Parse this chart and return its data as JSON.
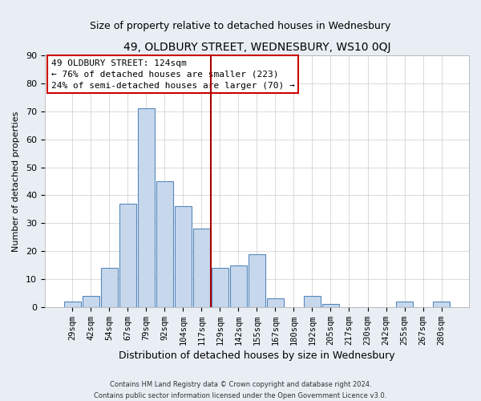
{
  "title": "49, OLDBURY STREET, WEDNESBURY, WS10 0QJ",
  "subtitle": "Size of property relative to detached houses in Wednesbury",
  "xlabel": "Distribution of detached houses by size in Wednesbury",
  "ylabel": "Number of detached properties",
  "bar_labels": [
    "29sqm",
    "42sqm",
    "54sqm",
    "67sqm",
    "79sqm",
    "92sqm",
    "104sqm",
    "117sqm",
    "129sqm",
    "142sqm",
    "155sqm",
    "167sqm",
    "180sqm",
    "192sqm",
    "205sqm",
    "217sqm",
    "230sqm",
    "242sqm",
    "255sqm",
    "267sqm",
    "280sqm"
  ],
  "bar_values": [
    2,
    4,
    14,
    37,
    71,
    45,
    36,
    28,
    14,
    15,
    19,
    3,
    0,
    4,
    1,
    0,
    0,
    0,
    2,
    0,
    2
  ],
  "bar_color": "#c8d8ec",
  "bar_edge_color": "#5588bb",
  "ylim": [
    0,
    90
  ],
  "yticks": [
    0,
    10,
    20,
    30,
    40,
    50,
    60,
    70,
    80,
    90
  ],
  "vline_color": "#aa0000",
  "annotation_title": "49 OLDBURY STREET: 124sqm",
  "annotation_line1": "← 76% of detached houses are smaller (223)",
  "annotation_line2": "24% of semi-detached houses are larger (70) →",
  "annotation_box_color": "#ffffff",
  "annotation_box_edge": "#cc0000",
  "footer_line1": "Contains HM Land Registry data © Crown copyright and database right 2024.",
  "footer_line2": "Contains public sector information licensed under the Open Government Licence v3.0.",
  "background_color": "#e8eef4",
  "plot_bg_color": "#ffffff"
}
